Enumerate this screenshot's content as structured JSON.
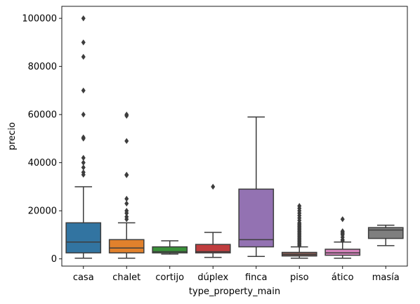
{
  "chart_data": {
    "type": "box",
    "xlabel": "type_property_main",
    "ylabel": "precio",
    "ylim": [
      -3000,
      105000
    ],
    "yticks": [
      0,
      20000,
      40000,
      60000,
      80000,
      100000
    ],
    "grid": false,
    "legend": "none",
    "categories": [
      "casa",
      "chalet",
      "cortijo",
      "dúplex",
      "finca",
      "piso",
      "ático",
      "masía"
    ],
    "boxes": [
      {
        "category": "casa",
        "color": "#3274a1",
        "whisker_low": 300,
        "q1": 2500,
        "median": 7000,
        "q3": 15000,
        "whisker_high": 30000,
        "outliers": [
          100000,
          90000,
          84000,
          70000,
          60000,
          50500,
          50000,
          42000,
          40000,
          38000,
          36000,
          35000
        ]
      },
      {
        "category": "chalet",
        "color": "#e1812c",
        "whisker_low": 300,
        "q1": 2500,
        "median": 4500,
        "q3": 8000,
        "whisker_high": 15000,
        "outliers": [
          60000,
          59500,
          49000,
          35000,
          34800,
          25000,
          23000,
          20000,
          19000,
          17500,
          16500
        ]
      },
      {
        "category": "cortijo",
        "color": "#3a923a",
        "whisker_low": 2000,
        "q1": 2500,
        "median": 3000,
        "q3": 5000,
        "whisker_high": 7500,
        "outliers": []
      },
      {
        "category": "dúplex",
        "color": "#c03d3e",
        "whisker_low": 600,
        "q1": 2500,
        "median": 3000,
        "q3": 6000,
        "whisker_high": 11000,
        "outliers": [
          30000
        ]
      },
      {
        "category": "finca",
        "color": "#9372b2",
        "whisker_low": 1000,
        "q1": 5000,
        "median": 8000,
        "q3": 29000,
        "whisker_high": 59000,
        "outliers": []
      },
      {
        "category": "piso",
        "color": "#845b53",
        "whisker_low": 300,
        "q1": 1200,
        "median": 1800,
        "q3": 2700,
        "whisker_high": 5000,
        "outliers": [
          5500,
          6000,
          6500,
          7000,
          7500,
          8000,
          8500,
          9000,
          9500,
          10000,
          10500,
          11000,
          11500,
          12000,
          12500,
          13000,
          13500,
          14000,
          14500,
          15000,
          16000,
          17000,
          18000,
          19000,
          20000,
          21000,
          22000
        ]
      },
      {
        "category": "ático",
        "color": "#d684bd",
        "whisker_low": 300,
        "q1": 1500,
        "median": 2500,
        "q3": 4000,
        "whisker_high": 7000,
        "outliers": [
          7500,
          8000,
          9000,
          10000,
          10500,
          11000,
          11500,
          16500
        ]
      },
      {
        "category": "masía",
        "color": "#7f7f7f",
        "whisker_low": 5500,
        "q1": 8500,
        "median": 12000,
        "q3": 13000,
        "whisker_high": 14000,
        "outliers": []
      }
    ]
  }
}
